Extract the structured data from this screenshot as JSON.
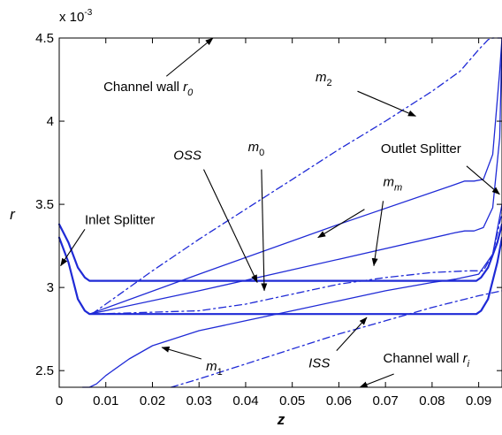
{
  "chart_data": {
    "type": "line",
    "title": "",
    "xlabel": "z",
    "ylabel": "r",
    "y_multiplier": "x 10",
    "y_exponent": "-3",
    "xlim": [
      0,
      0.095
    ],
    "ylim": [
      2.4,
      4.5
    ],
    "x_ticks": [
      0,
      0.01,
      0.02,
      0.03,
      0.04,
      0.05,
      0.06,
      0.07,
      0.08,
      0.09
    ],
    "x_tick_labels": [
      "0",
      "0.01",
      "0.02",
      "0.03",
      "0.04",
      "0.05",
      "0.06",
      "0.07",
      "0.08",
      "0.09"
    ],
    "y_ticks": [
      2.5,
      3,
      3.5,
      4,
      4.5
    ],
    "y_tick_labels": [
      "2.5",
      "3",
      "3.5",
      "4",
      "4.5"
    ],
    "grid": false,
    "line_color": "#1f2ad6",
    "series": [
      {
        "key": "oss",
        "style": "solid",
        "width": 2.2,
        "x": [
          0,
          0.002,
          0.004,
          0.0055,
          0.0065,
          0.008,
          0.088,
          0.0895,
          0.0905,
          0.092,
          0.094,
          0.095
        ],
        "y": [
          3.38,
          3.27,
          3.12,
          3.06,
          3.04,
          3.04,
          3.04,
          3.04,
          3.06,
          3.12,
          3.27,
          3.38
        ]
      },
      {
        "key": "iss",
        "style": "solid",
        "width": 2.2,
        "x": [
          0,
          0.002,
          0.004,
          0.0055,
          0.0065,
          0.008,
          0.088,
          0.0895,
          0.0905,
          0.092,
          0.094,
          0.095
        ],
        "y": [
          3.3,
          3.15,
          2.93,
          2.86,
          2.84,
          2.84,
          2.84,
          2.84,
          2.86,
          2.93,
          3.15,
          3.3
        ]
      },
      {
        "key": "mm",
        "style": "solid",
        "width": 1.3,
        "x": [
          0.0065,
          0.03,
          0.06,
          0.085,
          0.087,
          0.089,
          0.091,
          0.093,
          0.0945,
          0.095
        ],
        "y": [
          2.84,
          3.08,
          3.38,
          3.62,
          3.64,
          3.64,
          3.65,
          3.8,
          4.3,
          4.5
        ]
      },
      {
        "key": "m0",
        "style": "solid",
        "width": 1.3,
        "x": [
          0.0065,
          0.03,
          0.06,
          0.085,
          0.087,
          0.089,
          0.091,
          0.093,
          0.0945,
          0.095
        ],
        "y": [
          2.84,
          2.98,
          3.17,
          3.33,
          3.34,
          3.34,
          3.36,
          3.48,
          3.9,
          4.5
        ]
      },
      {
        "key": "m1",
        "style": "solid",
        "width": 1.3,
        "x": [
          0.005,
          0.0065,
          0.008,
          0.01,
          0.015,
          0.02,
          0.03,
          0.04,
          0.05,
          0.06,
          0.07,
          0.08,
          0.085,
          0.09,
          0.093,
          0.095
        ],
        "y": [
          2.4,
          2.4,
          2.42,
          2.47,
          2.57,
          2.65,
          2.74,
          2.8,
          2.86,
          2.92,
          2.98,
          3.03,
          3.05,
          3.08,
          3.2,
          3.5
        ]
      },
      {
        "key": "m1b",
        "style": "dashdot",
        "width": 1.3,
        "x": [
          0.007,
          0.03,
          0.04,
          0.05,
          0.06,
          0.07,
          0.08,
          0.088,
          0.091,
          0.093,
          0.095
        ],
        "y": [
          2.84,
          2.86,
          2.9,
          2.96,
          3.02,
          3.06,
          3.09,
          3.1,
          3.1,
          3.2,
          3.45
        ]
      },
      {
        "key": "m2",
        "style": "dashdot",
        "width": 1.3,
        "x": [
          0.007,
          0.02,
          0.03,
          0.04,
          0.05,
          0.06,
          0.07,
          0.08,
          0.086,
          0.09,
          0.092,
          0.093,
          0.094,
          0.095
        ],
        "y": [
          2.84,
          3.1,
          3.29,
          3.47,
          3.65,
          3.83,
          4.0,
          4.18,
          4.3,
          4.43,
          4.49,
          4.5,
          4.5,
          4.5
        ]
      },
      {
        "key": "m3",
        "style": "dashdot",
        "width": 1.3,
        "x": [
          0.024,
          0.03,
          0.04,
          0.05,
          0.06,
          0.07,
          0.08,
          0.09,
          0.095
        ],
        "y": [
          2.4,
          2.45,
          2.54,
          2.63,
          2.72,
          2.8,
          2.88,
          2.95,
          2.98
        ]
      }
    ],
    "annotations": [
      {
        "key": "channel-wall-r0",
        "parts": [
          {
            "t": "Channel wall "
          },
          {
            "t": "r",
            "italic": true
          },
          {
            "t": "0",
            "italic": true,
            "sub": true
          }
        ],
        "text_x": 0.0095,
        "text_y": 4.18,
        "arrow_from": [
          0.023,
          4.27
        ],
        "arrow_to": [
          0.033,
          4.5
        ]
      },
      {
        "key": "m2-label",
        "parts": [
          {
            "t": "m",
            "italic": true
          },
          {
            "t": "2",
            "sub": true
          }
        ],
        "text_x": 0.055,
        "text_y": 4.24,
        "arrow_from": [
          0.064,
          4.18
        ],
        "arrow_to": [
          0.0765,
          4.03
        ]
      },
      {
        "key": "oss-label",
        "parts": [
          {
            "t": "OSS",
            "italic": true
          }
        ],
        "text_x": 0.0245,
        "text_y": 3.77,
        "arrow_from": [
          0.031,
          3.71
        ],
        "arrow_to": [
          0.0425,
          3.03
        ]
      },
      {
        "key": "m0-label",
        "parts": [
          {
            "t": "m",
            "italic": true
          },
          {
            "t": "0",
            "sub": true
          }
        ],
        "text_x": 0.0405,
        "text_y": 3.82,
        "arrow_from": [
          0.0434,
          3.71
        ],
        "arrow_to": [
          0.044,
          2.98
        ]
      },
      {
        "key": "outlet-splitter",
        "parts": [
          {
            "t": "Outlet Splitter"
          }
        ],
        "text_x": 0.069,
        "text_y": 3.81,
        "arrow_from": [
          0.0874,
          3.73
        ],
        "arrow_to": [
          0.0945,
          3.56
        ]
      },
      {
        "key": "mm-label",
        "parts": [
          {
            "t": "m",
            "italic": true
          },
          {
            "t": "m",
            "italic": true,
            "sub": true
          }
        ],
        "text_x": 0.0695,
        "text_y": 3.61,
        "arrow_from": [
          0.0655,
          3.47
        ],
        "arrow_to": [
          0.0555,
          3.3
        ]
      },
      {
        "key": "mm-arrow-b",
        "parts": [],
        "text_x": 0,
        "text_y": 0,
        "arrow_from": [
          0.0695,
          3.52
        ],
        "arrow_to": [
          0.0675,
          3.13
        ]
      },
      {
        "key": "inlet-splitter",
        "parts": [
          {
            "t": "Inlet Splitter"
          }
        ],
        "text_x": 0.0055,
        "text_y": 3.38,
        "arrow_from": [
          0.0055,
          3.35
        ],
        "arrow_to": [
          0.0003,
          3.13
        ]
      },
      {
        "key": "m1-label",
        "parts": [
          {
            "t": "m",
            "italic": true
          },
          {
            "t": "1",
            "sub": true
          }
        ],
        "text_x": 0.0315,
        "text_y": 2.5,
        "arrow_from": [
          0.0305,
          2.57
        ],
        "arrow_to": [
          0.022,
          2.64
        ]
      },
      {
        "key": "iss-label",
        "parts": [
          {
            "t": "ISS",
            "italic": true
          }
        ],
        "text_x": 0.0535,
        "text_y": 2.52,
        "arrow_from": [
          0.0595,
          2.62
        ],
        "arrow_to": [
          0.066,
          2.82
        ]
      },
      {
        "key": "channel-wall-ri",
        "parts": [
          {
            "t": "Channel wall "
          },
          {
            "t": "r",
            "italic": true
          },
          {
            "t": "i",
            "italic": true,
            "sub": true
          }
        ],
        "text_x": 0.0695,
        "text_y": 2.55,
        "arrow_from": [
          0.0718,
          2.48
        ],
        "arrow_to": [
          0.0645,
          2.4
        ]
      }
    ]
  }
}
